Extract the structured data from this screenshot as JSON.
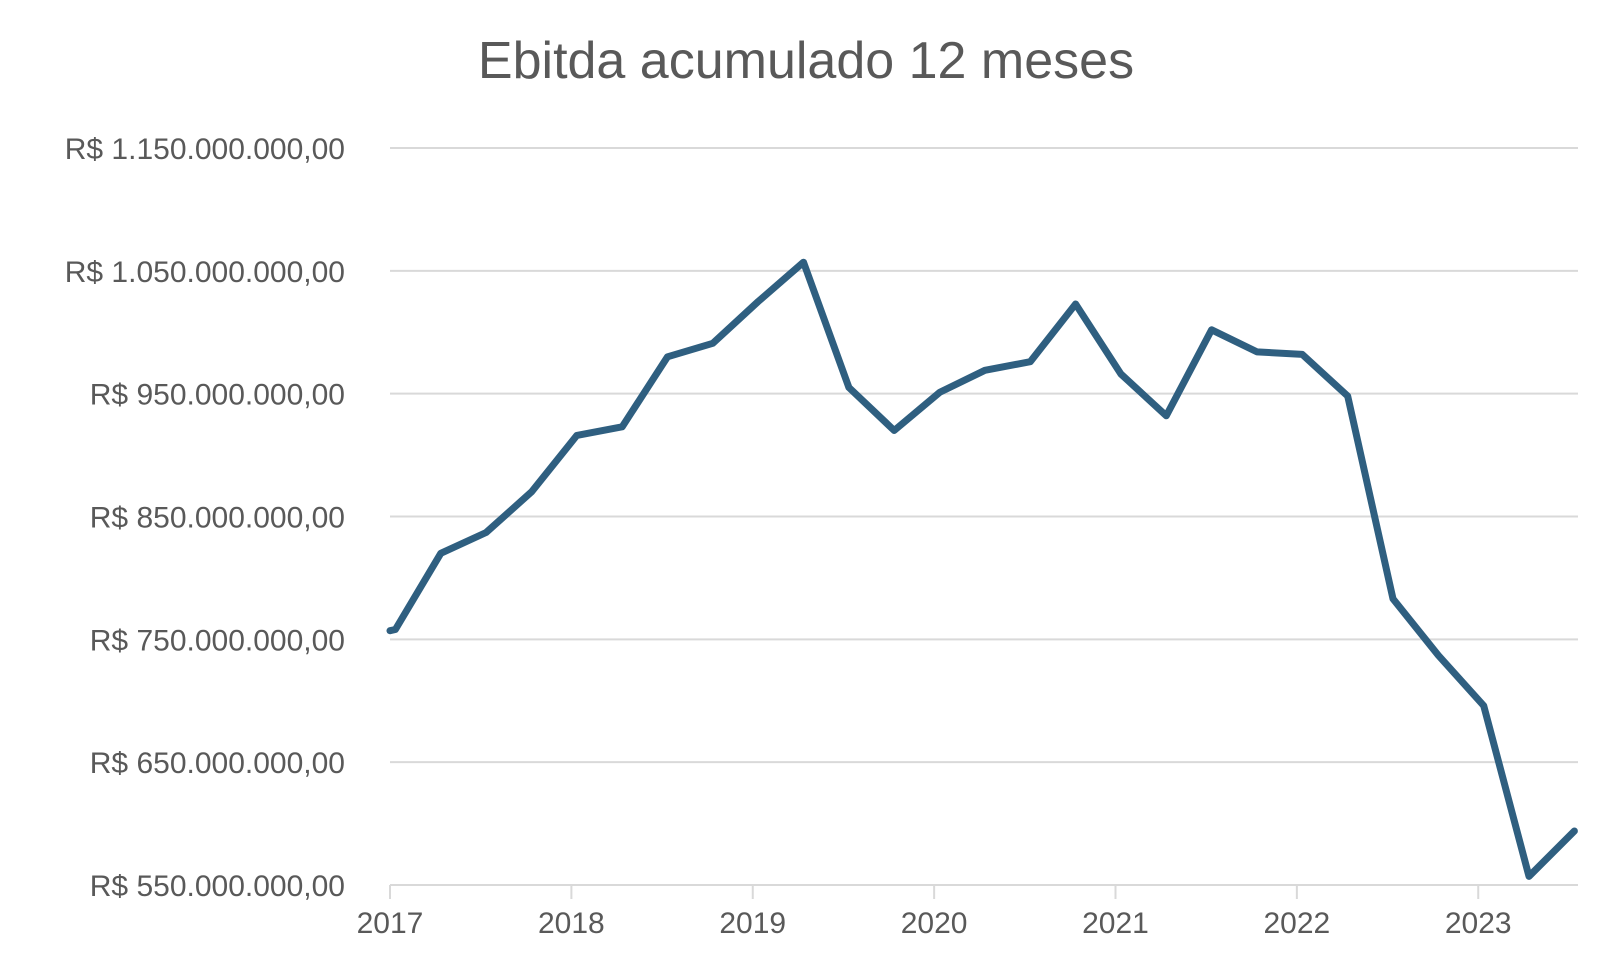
{
  "chart_data": {
    "type": "line",
    "title": "Ebitda acumulado 12 meses",
    "xlabel": "",
    "ylabel": "",
    "ylim": [
      550000000,
      1150000000
    ],
    "xlim": [
      2017.0,
      2023.55
    ],
    "y_ticks": [
      {
        "value": 1150000000,
        "label": "R$ 1.150.000.000,00"
      },
      {
        "value": 1050000000,
        "label": "R$ 1.050.000.000,00"
      },
      {
        "value": 950000000,
        "label": "R$ 950.000.000,00"
      },
      {
        "value": 850000000,
        "label": "R$ 850.000.000,00"
      },
      {
        "value": 750000000,
        "label": "R$ 750.000.000,00"
      },
      {
        "value": 650000000,
        "label": "R$ 650.000.000,00"
      },
      {
        "value": 550000000,
        "label": "R$ 550.000.000,00"
      }
    ],
    "x_ticks": [
      {
        "value": 2017,
        "label": "2017"
      },
      {
        "value": 2018,
        "label": "2018"
      },
      {
        "value": 2019,
        "label": "2019"
      },
      {
        "value": 2020,
        "label": "2020"
      },
      {
        "value": 2021,
        "label": "2021"
      },
      {
        "value": 2022,
        "label": "2022"
      },
      {
        "value": 2023,
        "label": "2023"
      }
    ],
    "grid": true,
    "legend": "none",
    "series": [
      {
        "color": "#2f5f80",
        "points": [
          {
            "x": 2017.0,
            "y": 757000000
          },
          {
            "x": 2017.03,
            "y": 758000000
          },
          {
            "x": 2017.28,
            "y": 820000000
          },
          {
            "x": 2017.53,
            "y": 837000000
          },
          {
            "x": 2017.78,
            "y": 870000000
          },
          {
            "x": 2018.03,
            "y": 916000000
          },
          {
            "x": 2018.28,
            "y": 923000000
          },
          {
            "x": 2018.53,
            "y": 980000000
          },
          {
            "x": 2018.78,
            "y": 991000000
          },
          {
            "x": 2019.03,
            "y": 1025000000
          },
          {
            "x": 2019.28,
            "y": 1057000000
          },
          {
            "x": 2019.53,
            "y": 955000000
          },
          {
            "x": 2019.78,
            "y": 920000000
          },
          {
            "x": 2020.03,
            "y": 951000000
          },
          {
            "x": 2020.28,
            "y": 969000000
          },
          {
            "x": 2020.53,
            "y": 976000000
          },
          {
            "x": 2020.78,
            "y": 1023000000
          },
          {
            "x": 2021.03,
            "y": 966000000
          },
          {
            "x": 2021.28,
            "y": 932000000
          },
          {
            "x": 2021.53,
            "y": 1002000000
          },
          {
            "x": 2021.78,
            "y": 984000000
          },
          {
            "x": 2022.03,
            "y": 982000000
          },
          {
            "x": 2022.28,
            "y": 948000000
          },
          {
            "x": 2022.53,
            "y": 783000000
          },
          {
            "x": 2022.78,
            "y": 737000000
          },
          {
            "x": 2023.03,
            "y": 696000000
          },
          {
            "x": 2023.28,
            "y": 557000000
          },
          {
            "x": 2023.53,
            "y": 594000000
          }
        ]
      }
    ]
  }
}
